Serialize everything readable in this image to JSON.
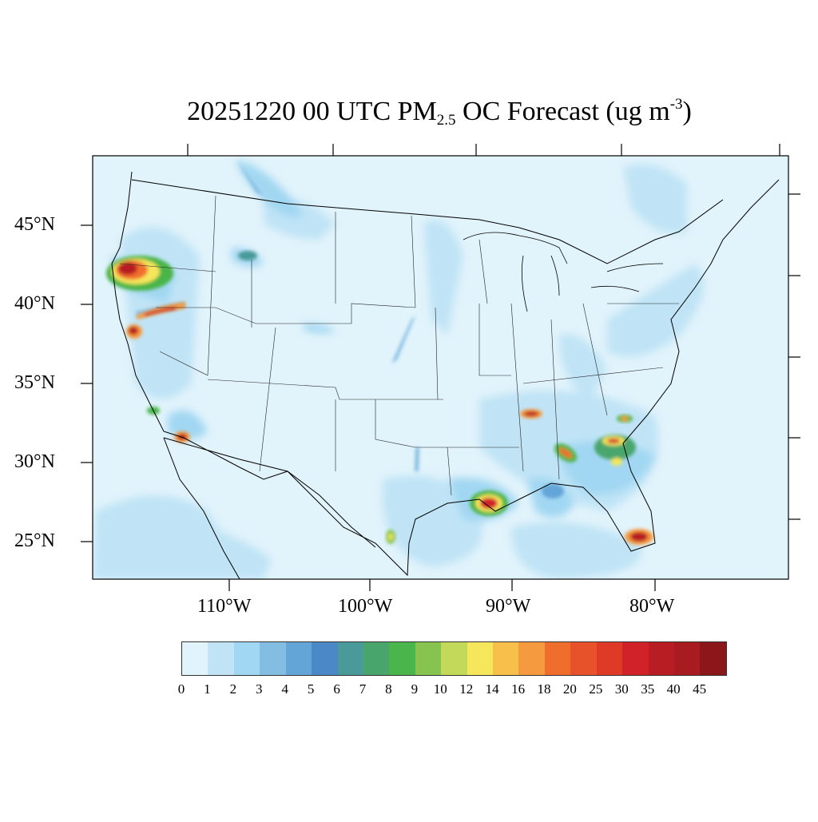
{
  "title": {
    "date": "20251220",
    "hour": "00 UTC",
    "species": "PM",
    "species_subscript": "2.5",
    "rest": "OC Forecast (ug m",
    "unit_superscript": "-3",
    "close": ")"
  },
  "axes": {
    "lat_labels": [
      "45°N",
      "40°N",
      "35°N",
      "30°N",
      "25°N"
    ],
    "lon_labels": [
      "110°W",
      "100°W",
      "90°W",
      "80°W"
    ]
  },
  "colorbar": {
    "ticks": [
      "0",
      "1",
      "2",
      "3",
      "4",
      "5",
      "6",
      "7",
      "8",
      "9",
      "10",
      "12",
      "14",
      "16",
      "18",
      "20",
      "25",
      "30",
      "35",
      "40",
      "45"
    ],
    "colors": [
      "#e1f3fb",
      "#c0e4f6",
      "#a1d7f2",
      "#83bde2",
      "#64a5d8",
      "#4a88c8",
      "#4a9a9a",
      "#48a66d",
      "#4ab54a",
      "#87c34f",
      "#c2d95a",
      "#f5e65b",
      "#f8bf4a",
      "#f59a3e",
      "#f06e2d",
      "#e8522b",
      "#df3a27",
      "#d22229",
      "#b81d24",
      "#a81b21",
      "#8c171a"
    ]
  }
}
